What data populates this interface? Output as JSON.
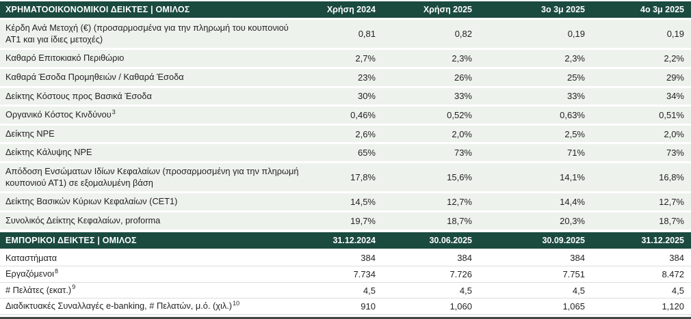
{
  "colors": {
    "header_bg": "#1b4a3f",
    "header_text": "#ffffff",
    "banded_row_bg": "#eef2ed",
    "lined_row_border": "#dddddd",
    "bottom_bar": "#3e4744"
  },
  "table": {
    "sections": [
      {
        "title": "ΧΡΗΜΑΤΟΟΙΚΟΝΟΜΙΚΟΙ ΔΕΙΚΤΕΣ | ΟΜΙΛΟΣ",
        "columns": [
          "Χρήση 2024",
          "Χρήση 2025",
          "3ο 3μ 2025",
          "4ο 3μ 2025"
        ],
        "style": "banded",
        "rows": [
          {
            "label": "Κέρδη Ανά Μετοχή (€) (προσαρμοσμένα για την πληρωμή του κουπονιού ΑΤ1 και για ίδιες μετοχές)",
            "sup": "",
            "values": [
              "0,81",
              "0,82",
              "0,19",
              "0,19"
            ]
          },
          {
            "label": "Καθαρό Επιτοκιακό Περιθώριο",
            "sup": "",
            "values": [
              "2,7%",
              "2,3%",
              "2,3%",
              "2,2%"
            ]
          },
          {
            "label": "Καθαρά Έσοδα Προμηθειών / Καθαρά Έσοδα",
            "sup": "",
            "values": [
              "23%",
              "26%",
              "25%",
              "29%"
            ]
          },
          {
            "label": "Δείκτης Κόστους προς Βασικά Έσοδα",
            "sup": "",
            "values": [
              "30%",
              "33%",
              "33%",
              "34%"
            ]
          },
          {
            "label": "Οργανικό Κόστος Κινδύνου",
            "sup": "3",
            "values": [
              "0,46%",
              "0,52%",
              "0,63%",
              "0,51%"
            ]
          },
          {
            "label": "Δείκτης NPE",
            "sup": "",
            "values": [
              "2,6%",
              "2,0%",
              "2,5%",
              "2,0%"
            ]
          },
          {
            "label": "Δείκτης Κάλυψης NPE",
            "sup": "",
            "values": [
              "65%",
              "73%",
              "71%",
              "73%"
            ]
          },
          {
            "label": "Απόδοση Ενσώματων Ιδίων Κεφαλαίων (προσαρμοσμένη για την πληρωμή κουπονιού ΑΤ1) σε εξομαλυμένη βάση",
            "sup": "",
            "values": [
              "17,8%",
              "15,6%",
              "14,1%",
              "16,8%"
            ]
          },
          {
            "label": "Δείκτης Βασικών Κύριων Κεφαλαίων (CET1)",
            "sup": "",
            "values": [
              "14,5%",
              "12,7%",
              "14,4%",
              "12,7%"
            ]
          },
          {
            "label": "Συνολικός Δείκτης Κεφαλαίων, proforma",
            "sup": "",
            "values": [
              "19,7%",
              "18,7%",
              "20,3%",
              "18,7%"
            ]
          }
        ]
      },
      {
        "title": "ΕΜΠΟΡΙΚΟΙ ΔΕΙΚΤΕΣ | ΟΜΙΛΟΣ",
        "columns": [
          "31.12.2024",
          "30.06.2025",
          "30.09.2025",
          "31.12.2025"
        ],
        "style": "lined",
        "rows": [
          {
            "label": "Καταστήματα",
            "sup": "",
            "values": [
              "384",
              "384",
              "384",
              "384"
            ]
          },
          {
            "label": "Εργαζόμενοι",
            "sup": "8",
            "values": [
              "7.734",
              "7.726",
              "7.751",
              "8.472"
            ]
          },
          {
            "label": "# Πελάτες (εκατ.)",
            "sup": "9",
            "values": [
              "4,5",
              "4,5",
              "4,5",
              "4,5"
            ]
          },
          {
            "label": "Διαδικτυακές Συναλλαγές e-banking, # Πελατών, μ.ό. (χιλ.)",
            "sup": "10",
            "values": [
              "910",
              "1,060",
              "1,065",
              "1,120"
            ]
          }
        ]
      }
    ]
  }
}
